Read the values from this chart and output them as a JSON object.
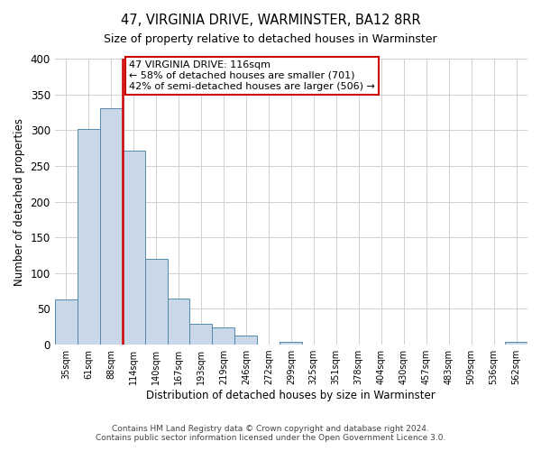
{
  "title": "47, VIRGINIA DRIVE, WARMINSTER, BA12 8RR",
  "subtitle": "Size of property relative to detached houses in Warminster",
  "xlabel": "Distribution of detached houses by size in Warminster",
  "ylabel": "Number of detached properties",
  "bin_labels": [
    "35sqm",
    "61sqm",
    "88sqm",
    "114sqm",
    "140sqm",
    "167sqm",
    "193sqm",
    "219sqm",
    "246sqm",
    "272sqm",
    "299sqm",
    "325sqm",
    "351sqm",
    "378sqm",
    "404sqm",
    "430sqm",
    "457sqm",
    "483sqm",
    "509sqm",
    "536sqm",
    "562sqm"
  ],
  "bar_heights": [
    63,
    302,
    330,
    271,
    120,
    64,
    29,
    24,
    13,
    0,
    4,
    0,
    0,
    0,
    0,
    0,
    0,
    0,
    0,
    0,
    4
  ],
  "bar_color": "#c8d8e8",
  "bar_edge_color": "#5588aa",
  "vline_color": "#cc0000",
  "ylim": [
    0,
    400
  ],
  "yticks": [
    0,
    50,
    100,
    150,
    200,
    250,
    300,
    350,
    400
  ],
  "annotation_title": "47 VIRGINIA DRIVE: 116sqm",
  "annotation_line1": "← 58% of detached houses are smaller (701)",
  "annotation_line2": "42% of semi-detached houses are larger (506) →",
  "annotation_box_color": "#ffffff",
  "annotation_box_edge": "#cc0000",
  "footer1": "Contains HM Land Registry data © Crown copyright and database right 2024.",
  "footer2": "Contains public sector information licensed under the Open Government Licence 3.0.",
  "background_color": "#ffffff",
  "grid_color": "#d0d0d0"
}
